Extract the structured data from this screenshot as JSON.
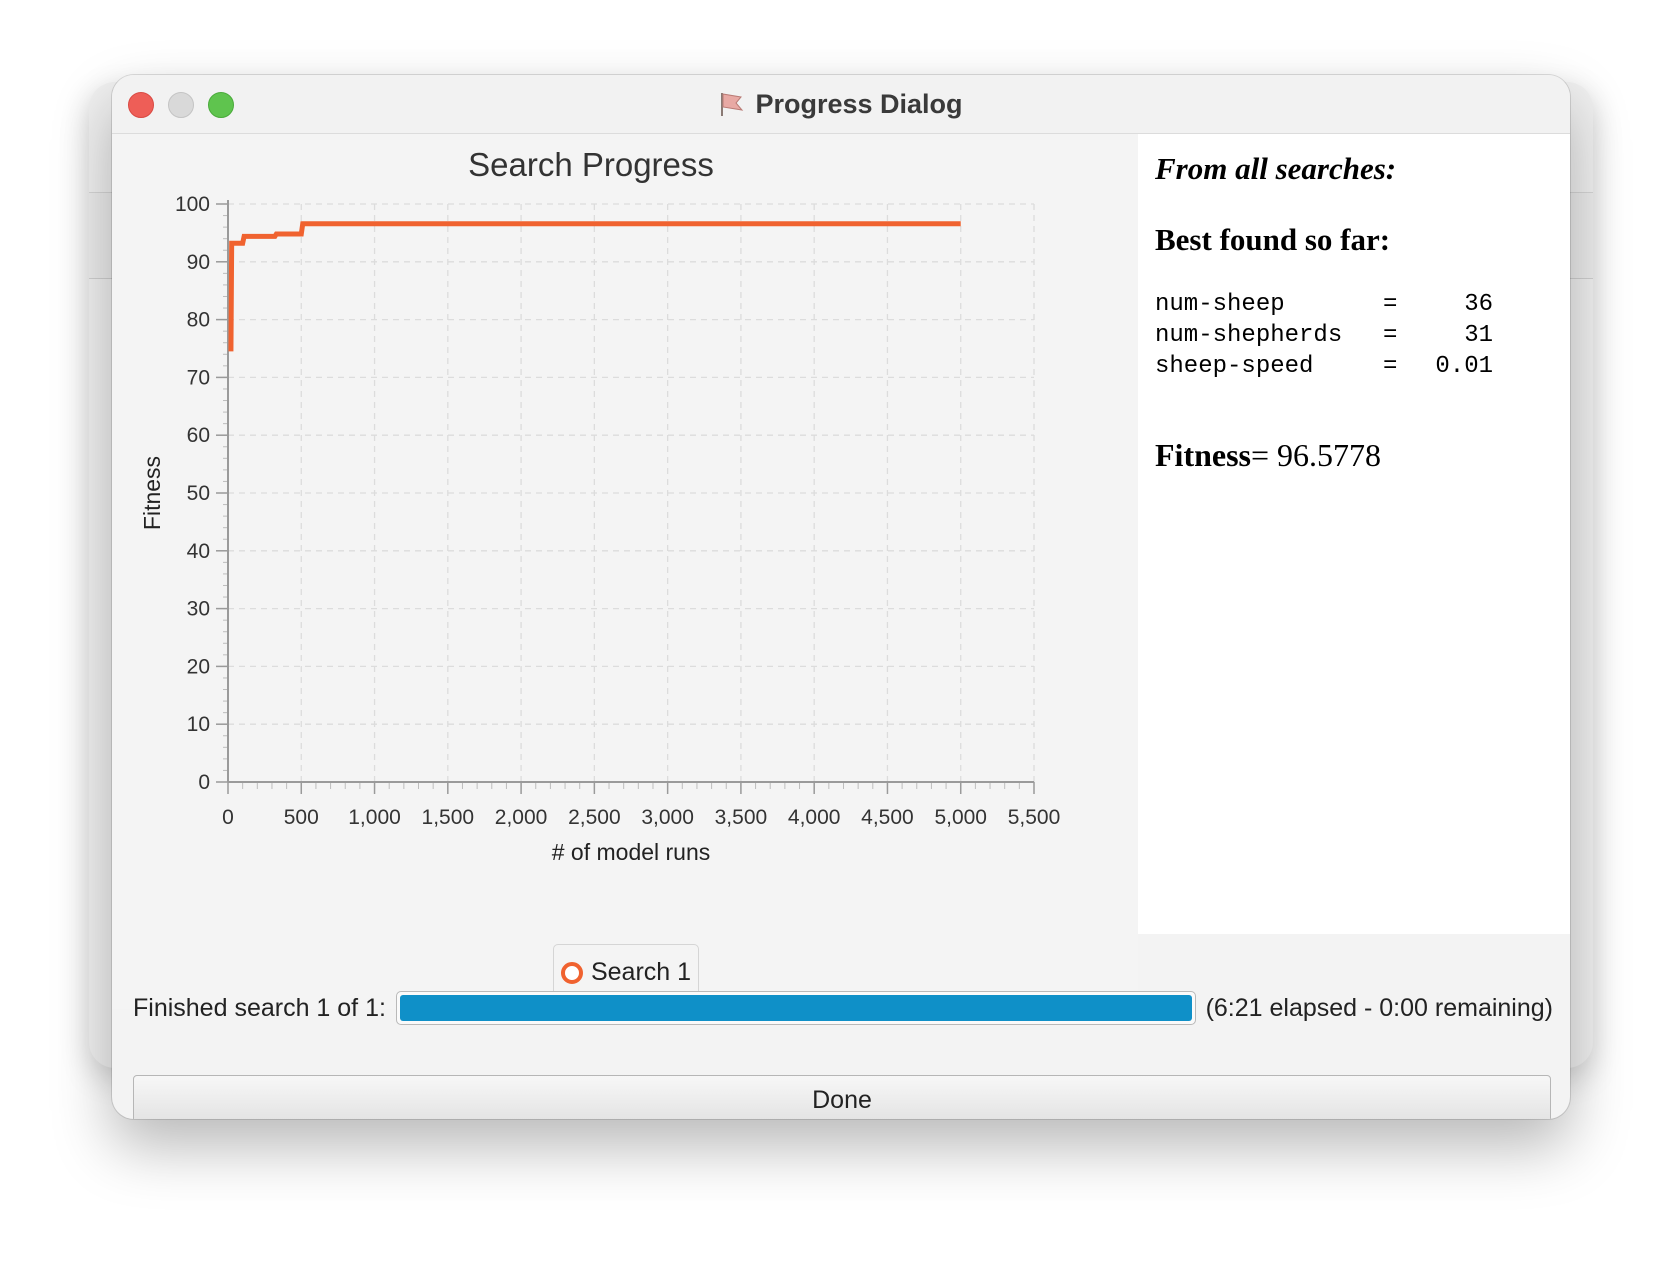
{
  "window": {
    "title": "Progress Dialog",
    "app_icon": "flag-icon"
  },
  "chart_data": {
    "type": "line",
    "title": "Search Progress",
    "xlabel": "# of model runs",
    "ylabel": "Fitness",
    "xlim": [
      0,
      5500
    ],
    "ylim": [
      0,
      100
    ],
    "x_ticks": [
      0,
      500,
      1000,
      1500,
      2000,
      2500,
      3000,
      3500,
      4000,
      4500,
      5000,
      5500
    ],
    "x_tick_labels": [
      "0",
      "500",
      "1,000",
      "1,500",
      "2,000",
      "2,500",
      "3,000",
      "3,500",
      "4,000",
      "4,500",
      "5,000",
      "5,500"
    ],
    "y_ticks": [
      0,
      10,
      20,
      30,
      40,
      50,
      60,
      70,
      80,
      90,
      100
    ],
    "y_tick_labels": [
      "0",
      "10",
      "20",
      "30",
      "40",
      "50",
      "60",
      "70",
      "80",
      "90",
      "100"
    ],
    "grid": true,
    "legend_position": "bottom",
    "series": [
      {
        "name": "Search 1",
        "color": "#f0622f",
        "x": [
          20,
          25,
          30,
          100,
          110,
          320,
          330,
          500,
          510,
          5000
        ],
        "y": [
          74.5,
          93.2,
          93.2,
          93.2,
          94.4,
          94.4,
          94.8,
          94.8,
          96.58,
          96.58
        ]
      }
    ]
  },
  "results": {
    "heading": "From all searches:",
    "best_label": "Best found so far:",
    "params": [
      {
        "name": "num-sheep",
        "eq": "=",
        "value": "36"
      },
      {
        "name": "num-shepherds",
        "eq": "=",
        "value": "31"
      },
      {
        "name": "sheep-speed",
        "eq": "=",
        "value": "0.01"
      }
    ],
    "fitness_label": "Fitness",
    "fitness_value": "= 96.5778"
  },
  "status": {
    "label": "Finished search 1 of 1:",
    "progress": 1.0,
    "progress_color": "#0f90c8",
    "elapsed_text": "(6:21 elapsed - 0:00 remaining)"
  },
  "done_button": {
    "label": "Done"
  }
}
